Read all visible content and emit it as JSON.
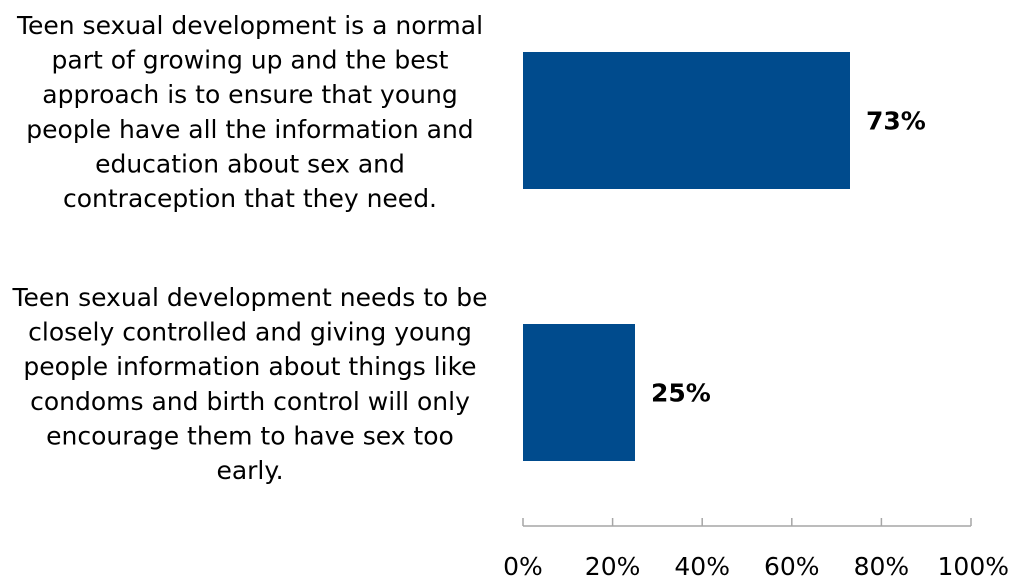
{
  "chart_data": {
    "type": "bar",
    "orientation": "horizontal",
    "categories": [
      "Teen sexual development is a normal part of growing up and the best approach is to ensure that young people have all the information and education about sex and contraception that they need.",
      "Teen sexual development needs to be closely controlled and giving young people information about things like condoms and birth control will only encourage them to have sex too early."
    ],
    "category_lines": [
      [
        "Teen sexual development is a normal",
        "part of growing up and the best",
        "approach is to ensure that young",
        "people have all the information and",
        "education about sex and",
        "contraception that they need."
      ],
      [
        "Teen sexual development needs to be",
        "closely controlled and giving young",
        "people information about things like",
        "condoms and birth control will only",
        "encourage them to have sex too",
        "early."
      ]
    ],
    "values": [
      73,
      25
    ],
    "data_labels": [
      "73%",
      "25%"
    ],
    "xlim": [
      0,
      100
    ],
    "x_ticks": [
      0,
      20,
      40,
      60,
      80,
      100
    ],
    "x_tick_labels": [
      "0%",
      "20%",
      "40%",
      "60%",
      "80%",
      "100%"
    ],
    "bar_color": "#004b8d",
    "axis_color": "#a6a6a6",
    "grid": false,
    "legend": "none",
    "title": "",
    "xlabel": "",
    "ylabel": ""
  }
}
